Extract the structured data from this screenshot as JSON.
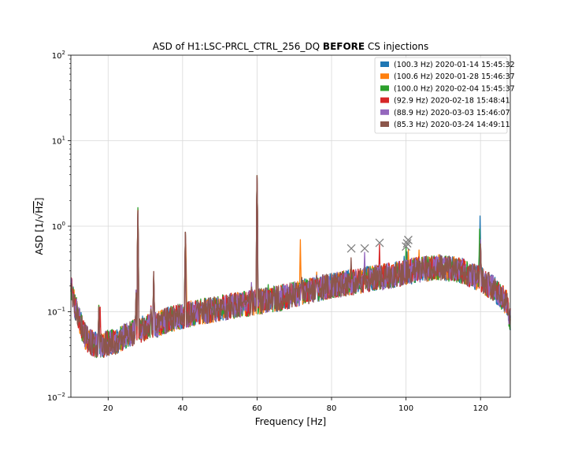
{
  "chart_data": {
    "type": "line",
    "title_prefix": "ASD of H1:LSC-PRCL_CTRL_256_DQ ",
    "title_bold": "BEFORE",
    "title_suffix": " CS injections",
    "xlabel": "Frequency [Hz]",
    "ylabel_prefix": "ASD [1/",
    "ylabel_sqrt": "Hz",
    "ylabel_suffix": "]",
    "xlim": [
      10,
      128
    ],
    "ylim": [
      0.01,
      100
    ],
    "yscale": "log",
    "grid": true,
    "legend_position": "top-right",
    "x_ticks": [
      20,
      40,
      60,
      80,
      100,
      120
    ],
    "x_tick_labels": [
      "20",
      "40",
      "60",
      "80",
      "100",
      "120"
    ],
    "y_ticks": [
      0.01,
      0.1,
      1,
      10,
      100
    ],
    "y_tick_base": "10",
    "y_tick_exponents": [
      "−2",
      "−1",
      "0",
      "1",
      "2"
    ],
    "baseline": [
      [
        10,
        0.2
      ],
      [
        11,
        0.12
      ],
      [
        12,
        0.09
      ],
      [
        13,
        0.065
      ],
      [
        14,
        0.05
      ],
      [
        16,
        0.042
      ],
      [
        18,
        0.04
      ],
      [
        20,
        0.043
      ],
      [
        22,
        0.045
      ],
      [
        24,
        0.05
      ],
      [
        26,
        0.055
      ],
      [
        28,
        0.06
      ],
      [
        30,
        0.065
      ],
      [
        33,
        0.07
      ],
      [
        36,
        0.08
      ],
      [
        40,
        0.09
      ],
      [
        45,
        0.1
      ],
      [
        50,
        0.11
      ],
      [
        55,
        0.12
      ],
      [
        60,
        0.13
      ],
      [
        65,
        0.14
      ],
      [
        70,
        0.16
      ],
      [
        75,
        0.18
      ],
      [
        80,
        0.2
      ],
      [
        85,
        0.22
      ],
      [
        90,
        0.24
      ],
      [
        95,
        0.26
      ],
      [
        100,
        0.29
      ],
      [
        105,
        0.32
      ],
      [
        110,
        0.33
      ],
      [
        115,
        0.3
      ],
      [
        120,
        0.24
      ],
      [
        124,
        0.18
      ],
      [
        127,
        0.13
      ],
      [
        128,
        0.08
      ]
    ],
    "common_peaks": [
      [
        17.5,
        0.12
      ],
      [
        27.5,
        0.18
      ],
      [
        28.0,
        1.65
      ],
      [
        31.5,
        0.12
      ],
      [
        32.2,
        0.3
      ],
      [
        40.7,
        0.9
      ],
      [
        45.0,
        0.12
      ],
      [
        58.5,
        0.22
      ],
      [
        60.0,
        4.3
      ],
      [
        64.5,
        0.2
      ],
      [
        72.0,
        0.26
      ],
      [
        76.0,
        0.3
      ],
      [
        120.0,
        0.7
      ]
    ],
    "series": [
      {
        "name": "(100.3 Hz) 2020-01-14 15:45:32",
        "color": "#1f77b4",
        "peak_freq": 100.3,
        "peak_asd": 0.55,
        "extra_peaks": [
          [
            119.9,
            1.35
          ],
          [
            99.5,
            0.5
          ]
        ]
      },
      {
        "name": "(100.6 Hz) 2020-01-28 15:46:37",
        "color": "#ff7f0e",
        "peak_freq": 100.6,
        "peak_asd": 0.6,
        "extra_peaks": [
          [
            71.6,
            0.76
          ],
          [
            40.9,
            0.7
          ],
          [
            103.5,
            0.55
          ]
        ]
      },
      {
        "name": "(100.0 Hz) 2020-02-04 15:45:37",
        "color": "#2ca02c",
        "peak_freq": 100.0,
        "peak_asd": 0.58,
        "extra_peaks": [
          [
            119.8,
            1.0
          ],
          [
            63.0,
            0.22
          ]
        ]
      },
      {
        "name": "(92.9 Hz) 2020-02-18 15:48:41",
        "color": "#d62728",
        "peak_freq": 92.9,
        "peak_asd": 0.62,
        "extra_peaks": [
          [
            17.9,
            0.12
          ],
          [
            124.0,
            0.2
          ]
        ]
      },
      {
        "name": "(88.9 Hz) 2020-03-03 15:46:07",
        "color": "#9467bd",
        "peak_freq": 88.9,
        "peak_asd": 0.5,
        "extra_peaks": [
          [
            110.0,
            0.45
          ]
        ]
      },
      {
        "name": "(85.3 Hz) 2020-03-24 14:49:11",
        "color": "#8c564b",
        "peak_freq": 85.3,
        "peak_asd": 0.5,
        "extra_peaks": [
          [
            28.0,
            1.65
          ],
          [
            60.0,
            4.2
          ]
        ]
      }
    ],
    "markers": [
      [
        85.3,
        0.55
      ],
      [
        88.9,
        0.55
      ],
      [
        92.9,
        0.64
      ],
      [
        100.0,
        0.58
      ],
      [
        100.3,
        0.63
      ],
      [
        100.6,
        0.69
      ]
    ],
    "marker_symbol": "x",
    "marker_color": "#7f7f7f"
  }
}
